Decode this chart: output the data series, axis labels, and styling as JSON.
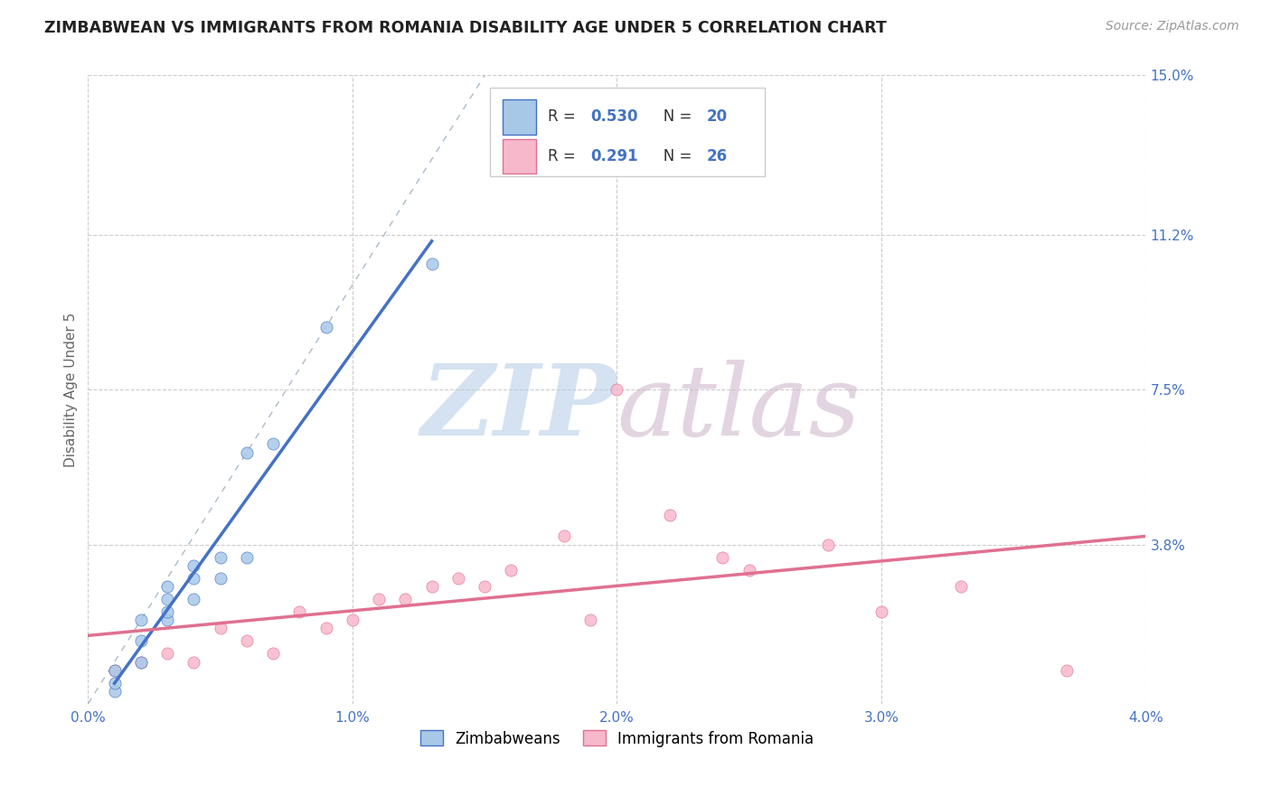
{
  "title": "ZIMBABWEAN VS IMMIGRANTS FROM ROMANIA DISABILITY AGE UNDER 5 CORRELATION CHART",
  "source": "Source: ZipAtlas.com",
  "ylabel": "Disability Age Under 5",
  "xlim": [
    0.0,
    0.04
  ],
  "ylim": [
    0.0,
    0.15
  ],
  "xticks": [
    0.0,
    0.01,
    0.02,
    0.03,
    0.04
  ],
  "xticklabels": [
    "0.0%",
    "1.0%",
    "2.0%",
    "3.0%",
    "4.0%"
  ],
  "yticks_right": [
    0.038,
    0.075,
    0.112,
    0.15
  ],
  "yticks_right_labels": [
    "3.8%",
    "7.5%",
    "11.2%",
    "15.0%"
  ],
  "r_zimbabwe": 0.53,
  "n_zimbabwe": 20,
  "r_romania": 0.291,
  "n_romania": 26,
  "color_zimbabwe": "#a8c8e8",
  "color_romania": "#f8b8cc",
  "line_color_zimbabwe": "#4472c4",
  "line_color_romania": "#e07090",
  "legend_label_zimbabwe": "Zimbabweans",
  "legend_label_romania": "Immigrants from Romania",
  "background_color": "#ffffff",
  "grid_color": "#cccccc",
  "title_color": "#222222",
  "axis_label_color": "#666666",
  "tick_label_color": "#4472c4",
  "zimbabwe_x": [
    0.001,
    0.001,
    0.001,
    0.002,
    0.002,
    0.002,
    0.003,
    0.003,
    0.003,
    0.003,
    0.004,
    0.004,
    0.004,
    0.005,
    0.005,
    0.006,
    0.006,
    0.007,
    0.009,
    0.013
  ],
  "zimbabwe_y": [
    0.003,
    0.005,
    0.008,
    0.01,
    0.015,
    0.02,
    0.02,
    0.022,
    0.025,
    0.028,
    0.025,
    0.03,
    0.033,
    0.03,
    0.035,
    0.035,
    0.06,
    0.062,
    0.09,
    0.105
  ],
  "romania_x": [
    0.001,
    0.002,
    0.003,
    0.004,
    0.005,
    0.006,
    0.007,
    0.008,
    0.009,
    0.01,
    0.011,
    0.012,
    0.013,
    0.014,
    0.015,
    0.016,
    0.018,
    0.019,
    0.02,
    0.022,
    0.024,
    0.025,
    0.028,
    0.03,
    0.033,
    0.037
  ],
  "romania_y": [
    0.008,
    0.01,
    0.012,
    0.01,
    0.018,
    0.015,
    0.012,
    0.022,
    0.018,
    0.02,
    0.025,
    0.025,
    0.028,
    0.03,
    0.028,
    0.032,
    0.04,
    0.02,
    0.075,
    0.045,
    0.035,
    0.032,
    0.038,
    0.022,
    0.028,
    0.008
  ],
  "ref_line_x": [
    0.0,
    0.015
  ],
  "ref_line_y": [
    0.0,
    0.15
  ]
}
